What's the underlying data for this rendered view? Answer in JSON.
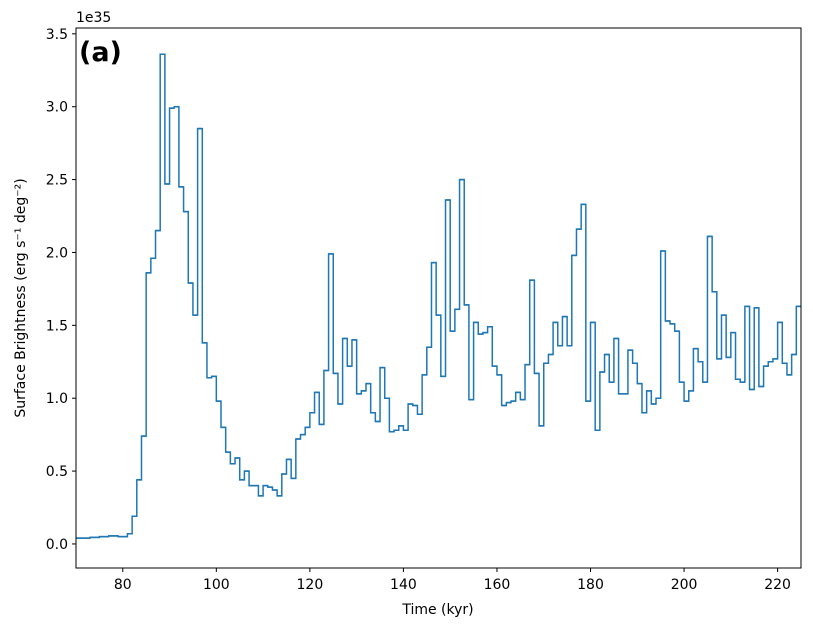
{
  "chart_data": {
    "type": "step",
    "annotation": "(a)",
    "offset_label": "1e35",
    "x_label": "Time (kyr)",
    "y_label": "Surface Brightness (erg s⁻¹ deg⁻²)",
    "color": "#1f77b4",
    "xlim": [
      70,
      225
    ],
    "ylim": [
      -0.165,
      3.54
    ],
    "xticks": [
      80,
      100,
      120,
      140,
      160,
      180,
      200,
      220
    ],
    "yticks": [
      {
        "value": 0,
        "label": "0.0"
      },
      {
        "value": 0.5,
        "label": "0.5"
      },
      {
        "value": 1,
        "label": "1.0"
      },
      {
        "value": 1.5,
        "label": "1.5"
      },
      {
        "value": 2,
        "label": "2.0"
      },
      {
        "value": 2.5,
        "label": "2.5"
      },
      {
        "value": 3,
        "label": "3.0"
      },
      {
        "value": 3.5,
        "label": "3.5"
      }
    ],
    "x": [
      70,
      71,
      72,
      73,
      74,
      75,
      76,
      77,
      78,
      79,
      80,
      81,
      82,
      83,
      84,
      85,
      86,
      87,
      88,
      89,
      90,
      91,
      92,
      93,
      94,
      95,
      96,
      97,
      98,
      99,
      100,
      101,
      102,
      103,
      104,
      105,
      106,
      107,
      108,
      109,
      110,
      111,
      112,
      113,
      114,
      115,
      116,
      117,
      118,
      119,
      120,
      121,
      122,
      123,
      124,
      125,
      126,
      127,
      128,
      129,
      130,
      131,
      132,
      133,
      134,
      135,
      136,
      137,
      138,
      139,
      140,
      141,
      142,
      143,
      144,
      145,
      146,
      147,
      148,
      149,
      150,
      151,
      152,
      153,
      154,
      155,
      156,
      157,
      158,
      159,
      160,
      161,
      162,
      163,
      164,
      165,
      166,
      167,
      168,
      169,
      170,
      171,
      172,
      173,
      174,
      175,
      176,
      177,
      178,
      179,
      180,
      181,
      182,
      183,
      184,
      185,
      186,
      187,
      188,
      189,
      190,
      191,
      192,
      193,
      194,
      195,
      196,
      197,
      198,
      199,
      200,
      201,
      202,
      203,
      204,
      205,
      206,
      207,
      208,
      209,
      210,
      211,
      212,
      213,
      214,
      215,
      216,
      217,
      218,
      219,
      220,
      221,
      222,
      223,
      224
    ],
    "values": [
      0.04,
      0.04,
      0.04,
      0.045,
      0.045,
      0.05,
      0.05,
      0.055,
      0.055,
      0.05,
      0.05,
      0.07,
      0.19,
      0.44,
      0.74,
      1.86,
      1.96,
      2.15,
      3.36,
      2.47,
      2.99,
      3.0,
      2.45,
      2.28,
      1.79,
      1.57,
      2.85,
      1.38,
      1.14,
      1.15,
      0.98,
      0.8,
      0.63,
      0.55,
      0.59,
      0.44,
      0.5,
      0.4,
      0.4,
      0.33,
      0.4,
      0.39,
      0.37,
      0.33,
      0.48,
      0.58,
      0.45,
      0.72,
      0.75,
      0.8,
      0.9,
      1.04,
      0.82,
      1.19,
      1.99,
      1.17,
      0.96,
      1.41,
      1.22,
      1.4,
      1.03,
      1.05,
      1.1,
      0.9,
      0.84,
      1.21,
      1.0,
      0.77,
      0.78,
      0.81,
      0.78,
      0.96,
      0.95,
      0.89,
      1.16,
      1.35,
      1.93,
      1.57,
      1.15,
      2.36,
      1.46,
      1.61,
      2.5,
      1.64,
      0.99,
      1.52,
      1.44,
      1.45,
      1.49,
      1.22,
      1.16,
      0.95,
      0.97,
      0.98,
      1.04,
      0.99,
      1.23,
      1.81,
      1.17,
      0.81,
      1.24,
      1.3,
      1.52,
      1.36,
      1.56,
      1.36,
      1.98,
      2.16,
      2.33,
      0.98,
      1.52,
      0.78,
      1.18,
      1.3,
      1.11,
      1.41,
      1.03,
      1.03,
      1.33,
      1.24,
      1.1,
      0.9,
      1.05,
      0.96,
      1.0,
      2.01,
      1.53,
      1.51,
      1.46,
      1.11,
      0.98,
      1.05,
      1.34,
      1.25,
      1.11,
      2.11,
      1.73,
      1.27,
      1.57,
      1.28,
      1.45,
      1.13,
      1.11,
      1.63,
      1.06,
      1.62,
      1.08,
      1.22,
      1.25,
      1.27,
      1.52,
      1.24,
      1.16,
      1.3,
      1.63
    ]
  }
}
